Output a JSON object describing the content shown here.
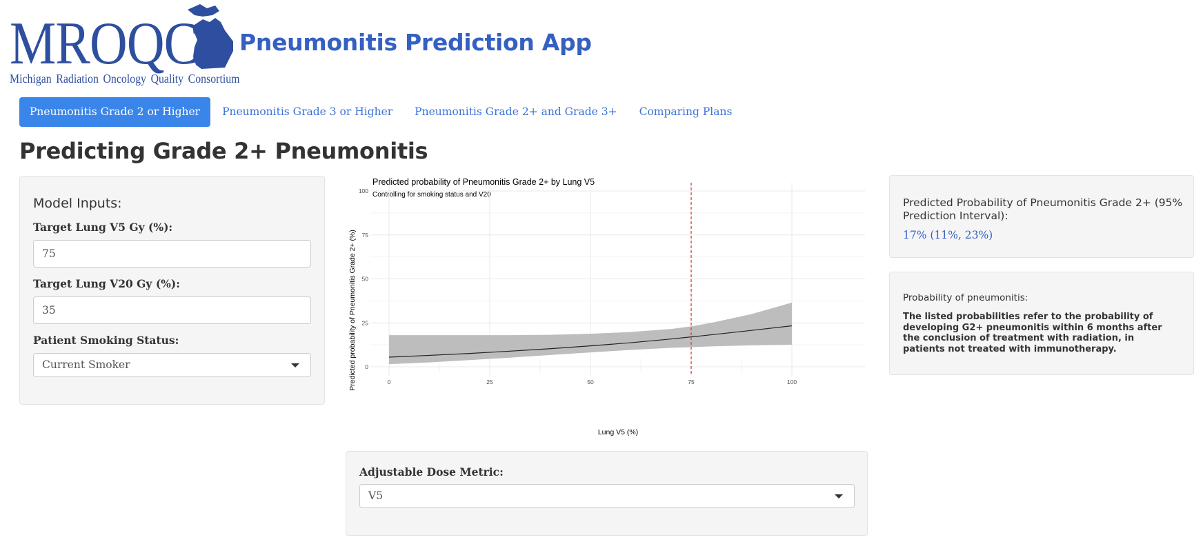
{
  "header": {
    "logo_text": "MROQC",
    "logo_subtitle": "Michigan Radiation Oncology Quality Consortium",
    "app_title": "Pneumonitis Prediction App",
    "brand_color": "#3560c2"
  },
  "tabs": [
    {
      "label": "Pneumonitis Grade 2 or Higher",
      "active": true
    },
    {
      "label": "Pneumonitis Grade 3 or Higher",
      "active": false
    },
    {
      "label": "Pneumonitis Grade 2+ and Grade 3+",
      "active": false
    },
    {
      "label": "Comparing Plans",
      "active": false
    }
  ],
  "page_heading": "Predicting Grade 2+ Pneumonitis",
  "model_inputs": {
    "title": "Model Inputs:",
    "v5_label": "Target Lung V5 Gy (%):",
    "v5_value": "75",
    "v20_label": "Target Lung V20 Gy (%):",
    "v20_value": "35",
    "smoking_label": "Patient Smoking Status:",
    "smoking_value": "Current Smoker"
  },
  "dose_metric": {
    "label": "Adjustable Dose Metric:",
    "value": "V5"
  },
  "prediction": {
    "title": "Predicted Probability of Pneumonitis Grade 2+ (95% Prediction Interval):",
    "value": "17% (11%, 23%)"
  },
  "info": {
    "title": "Probability of pneumonitis:",
    "body": "The listed probabilities refer to the probability of developing G2+ pneumonitis within 6 months after the conclusion of treatment with radiation, in patients not treated with immunotherapy."
  },
  "chart_data": {
    "type": "line",
    "title": "Predicted probability of Pneumonitis Grade 2+ by Lung V5",
    "subtitle": "Controlling for smoking status and V20",
    "xlabel": "Lung V5 (%)",
    "ylabel": "Predicted probability of Pneumonitis Grade 2+ (%)",
    "xlim": [
      0,
      100
    ],
    "ylim": [
      0,
      100
    ],
    "xticks": [
      0,
      25,
      50,
      75,
      100
    ],
    "yticks": [
      0,
      25,
      50,
      75,
      100
    ],
    "grid": true,
    "vline": {
      "x": 75,
      "color": "#e0313a",
      "style": "dashed"
    },
    "series": [
      {
        "x": [
          0,
          10,
          20,
          30,
          40,
          50,
          60,
          70,
          75,
          80,
          90,
          100
        ],
        "y": [
          5.5,
          6.5,
          7.6,
          8.9,
          10.3,
          11.9,
          13.7,
          15.8,
          17,
          18.2,
          20.7,
          23.3
        ],
        "lower": [
          1.5,
          2.5,
          3.8,
          5.2,
          6.7,
          8.2,
          9.6,
          10.8,
          11.2,
          11.6,
          12.2,
          12.6
        ],
        "upper": [
          18,
          18,
          18,
          18,
          18.2,
          18.8,
          19.8,
          21.5,
          23,
          25,
          30,
          36.5
        ],
        "line_color": "#222222",
        "band_color": "#bdbdbd"
      }
    ]
  }
}
